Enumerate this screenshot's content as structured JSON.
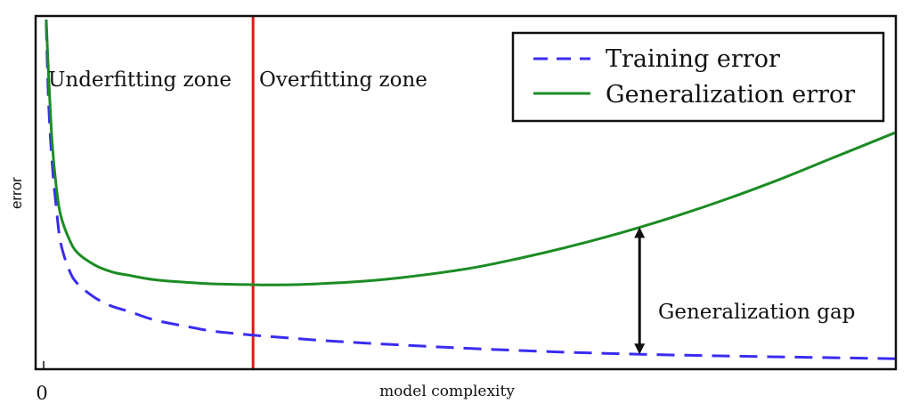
{
  "chart_data": {
    "type": "line",
    "title": "",
    "xlabel": "model complexity",
    "ylabel": "error",
    "x_tick_labels": [
      "0"
    ],
    "xlim": [
      0,
      100
    ],
    "ylim": [
      0,
      10
    ],
    "grid": false,
    "legend_position": "top-right",
    "legend": [
      {
        "label": "Training error",
        "style": "dashed",
        "color": "#3a2cf0"
      },
      {
        "label": "Generalization error",
        "style": "solid",
        "color": "#1b8c24"
      }
    ],
    "series": [
      {
        "name": "Training error",
        "color": "#3a2cf0",
        "style": "dashed",
        "x": [
          0.3,
          0.6,
          1,
          1.5,
          2,
          3,
          4,
          6,
          8,
          10,
          13,
          17,
          20,
          24,
          30,
          36,
          42,
          50,
          60,
          70,
          80,
          90,
          100
        ],
        "y": [
          9.8,
          7.4,
          5.7,
          4.4,
          3.4,
          2.6,
          2.2,
          1.8,
          1.55,
          1.4,
          1.15,
          0.95,
          0.82,
          0.72,
          0.6,
          0.5,
          0.42,
          0.32,
          0.22,
          0.15,
          0.1,
          0.06,
          0.02
        ]
      },
      {
        "name": "Generalization error",
        "color": "#1b8c24",
        "style": "solid",
        "x": [
          0.3,
          0.6,
          1,
          1.5,
          2,
          3,
          4,
          6,
          8,
          10,
          13,
          17,
          20,
          24,
          26,
          30,
          36,
          42,
          50,
          56,
          62,
          68,
          74,
          80,
          86,
          92,
          96,
          100
        ],
        "y": [
          9.9,
          8.2,
          6.3,
          5.0,
          4.2,
          3.5,
          3.1,
          2.75,
          2.55,
          2.45,
          2.32,
          2.24,
          2.2,
          2.18,
          2.17,
          2.18,
          2.25,
          2.38,
          2.65,
          2.95,
          3.3,
          3.7,
          4.15,
          4.65,
          5.2,
          5.8,
          6.2,
          6.6
        ]
      }
    ],
    "vertical_marker": {
      "x": 24.6,
      "color": "#e01818"
    },
    "zone_labels": {
      "left": "Underfitting zone",
      "right": "Overfitting zone"
    },
    "gap_annotation": {
      "label": "Generalization gap",
      "x": 70
    }
  }
}
